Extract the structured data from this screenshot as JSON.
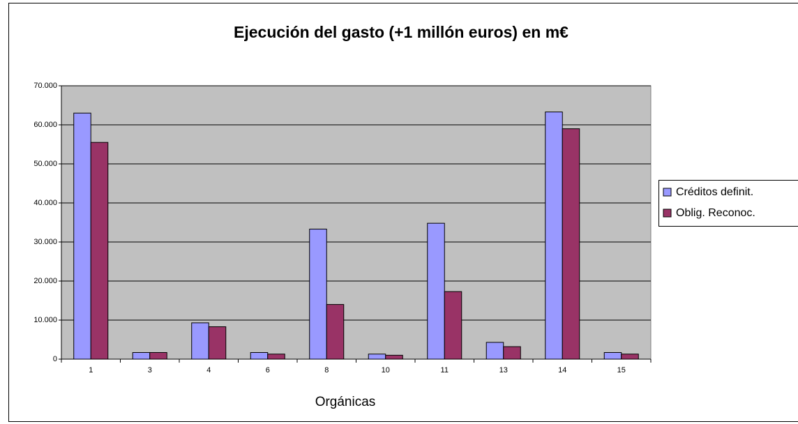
{
  "chart_data": {
    "type": "bar",
    "title": "Ejecución del gasto (+1 millón euros) en m€",
    "x_label": "Orgánicas",
    "categories": [
      "1",
      "3",
      "4",
      "6",
      "8",
      "10",
      "11",
      "13",
      "14",
      "15"
    ],
    "series": [
      {
        "name": "Créditos definit.",
        "color": "#9999ff",
        "values": [
          63000,
          1700,
          9300,
          1700,
          33300,
          1300,
          34800,
          4300,
          63300,
          1700
        ]
      },
      {
        "name": "Oblig. Reconoc.",
        "color": "#993366",
        "values": [
          55500,
          1700,
          8300,
          1300,
          14000,
          1000,
          17300,
          3200,
          59000,
          1300
        ]
      }
    ],
    "ylim": [
      0,
      70000
    ],
    "yticks": [
      0,
      {
        "value": 10000,
        "label": "10.000"
      },
      {
        "value": 20000,
        "label": "20.000"
      },
      {
        "value": 30000,
        "label": "30.000"
      },
      {
        "value": 40000,
        "label": "40.000"
      },
      {
        "value": 50000,
        "label": "50.000"
      },
      {
        "value": 60000,
        "label": "60.000"
      },
      {
        "value": 70000,
        "label": "70.000"
      }
    ],
    "grid": true,
    "plot_background": "#c0c0c0",
    "legend": "right"
  }
}
